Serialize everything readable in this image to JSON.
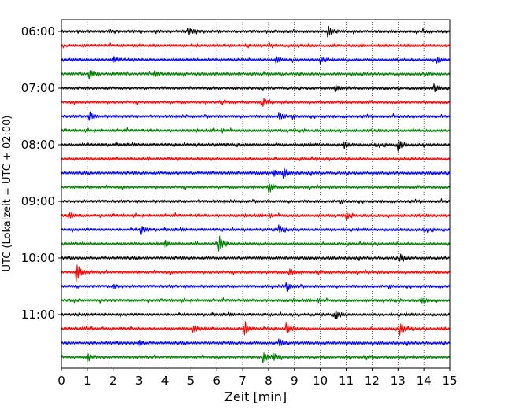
{
  "chart_data": {
    "type": "line",
    "title": "",
    "xlabel": "Zeit  [min]",
    "ylabel": "UTC (Lokalzeit = UTC + 02:00)",
    "xlim": [
      0,
      15
    ],
    "x_ticks": [
      "0",
      "1",
      "2",
      "3",
      "4",
      "5",
      "6",
      "7",
      "8",
      "9",
      "10",
      "11",
      "12",
      "13",
      "14",
      "15"
    ],
    "y_tick_labels": [
      "06:00",
      "07:00",
      "08:00",
      "09:00",
      "10:00",
      "11:00"
    ],
    "rows_per_hour": 4,
    "row_start_times": [
      "06:00",
      "06:15",
      "06:30",
      "06:45",
      "07:00",
      "07:15",
      "07:30",
      "07:45",
      "08:00",
      "08:15",
      "08:30",
      "08:45",
      "09:00",
      "09:15",
      "09:30",
      "09:45",
      "10:00",
      "10:15",
      "10:30",
      "10:45",
      "11:00",
      "11:15",
      "11:30",
      "11:45"
    ],
    "row_colors": [
      "#000000",
      "#ff0000",
      "#0000ff",
      "#008000"
    ],
    "grid": "vertical dotted lines at each minute",
    "events": [
      {
        "row": 0,
        "x": 10.3,
        "amp": 1.0
      },
      {
        "row": 0,
        "x": 4.9,
        "amp": 0.6
      },
      {
        "row": 2,
        "x": 2.0,
        "amp": 0.5
      },
      {
        "row": 2,
        "x": 8.3,
        "amp": 0.6
      },
      {
        "row": 2,
        "x": 10.0,
        "amp": 0.5
      },
      {
        "row": 2,
        "x": 14.5,
        "amp": 0.6
      },
      {
        "row": 3,
        "x": 1.1,
        "amp": 0.7
      },
      {
        "row": 3,
        "x": 3.6,
        "amp": 0.6
      },
      {
        "row": 4,
        "x": 10.6,
        "amp": 0.6
      },
      {
        "row": 4,
        "x": 14.4,
        "amp": 0.9
      },
      {
        "row": 5,
        "x": 7.8,
        "amp": 0.6
      },
      {
        "row": 6,
        "x": 1.1,
        "amp": 0.6
      },
      {
        "row": 6,
        "x": 8.4,
        "amp": 0.7
      },
      {
        "row": 8,
        "x": 13.0,
        "amp": 1.0
      },
      {
        "row": 8,
        "x": 10.9,
        "amp": 0.5
      },
      {
        "row": 10,
        "x": 8.2,
        "amp": 0.6
      },
      {
        "row": 10,
        "x": 8.6,
        "amp": 0.6
      },
      {
        "row": 11,
        "x": 8.0,
        "amp": 0.6
      },
      {
        "row": 13,
        "x": 0.3,
        "amp": 0.5
      },
      {
        "row": 13,
        "x": 11.0,
        "amp": 0.5
      },
      {
        "row": 14,
        "x": 3.1,
        "amp": 0.6
      },
      {
        "row": 14,
        "x": 8.4,
        "amp": 0.6
      },
      {
        "row": 15,
        "x": 6.1,
        "amp": 1.2
      },
      {
        "row": 15,
        "x": 4.0,
        "amp": 0.5
      },
      {
        "row": 16,
        "x": 13.1,
        "amp": 0.6
      },
      {
        "row": 17,
        "x": 0.6,
        "amp": 1.4
      },
      {
        "row": 17,
        "x": 8.8,
        "amp": 0.6
      },
      {
        "row": 18,
        "x": 8.7,
        "amp": 0.7
      },
      {
        "row": 18,
        "x": 2.0,
        "amp": 0.4
      },
      {
        "row": 19,
        "x": 13.9,
        "amp": 0.5
      },
      {
        "row": 20,
        "x": 10.6,
        "amp": 0.7
      },
      {
        "row": 21,
        "x": 5.1,
        "amp": 0.6
      },
      {
        "row": 21,
        "x": 7.1,
        "amp": 0.9
      },
      {
        "row": 21,
        "x": 8.7,
        "amp": 0.9
      },
      {
        "row": 21,
        "x": 13.1,
        "amp": 0.9
      },
      {
        "row": 22,
        "x": 3.0,
        "amp": 0.5
      },
      {
        "row": 22,
        "x": 8.4,
        "amp": 0.7
      },
      {
        "row": 23,
        "x": 1.0,
        "amp": 0.7
      },
      {
        "row": 23,
        "x": 7.8,
        "amp": 1.0
      },
      {
        "row": 23,
        "x": 8.2,
        "amp": 0.6
      }
    ]
  }
}
